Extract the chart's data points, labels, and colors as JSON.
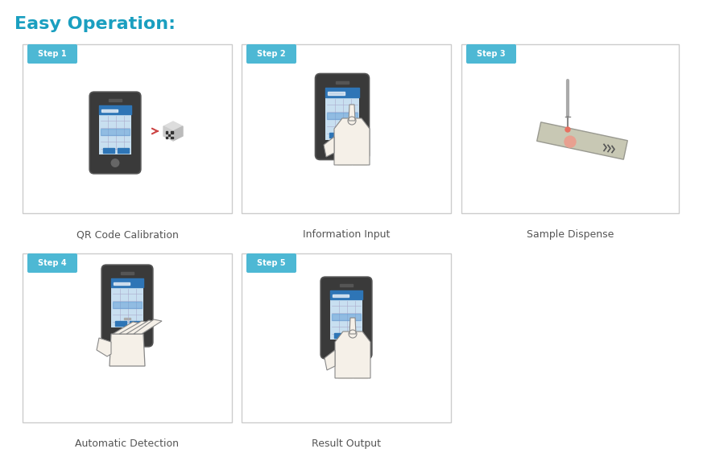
{
  "title": "Easy Operation:",
  "title_color": "#1a9fc0",
  "title_fontsize": 16,
  "title_bold": true,
  "background_color": "#ffffff",
  "steps": [
    {
      "label": "Step 1",
      "caption": "QR Code Calibration",
      "col": 0,
      "row": 0
    },
    {
      "label": "Step 2",
      "caption": "Information Input",
      "col": 1,
      "row": 0
    },
    {
      "label": "Step 3",
      "caption": "Sample Dispense",
      "col": 2,
      "row": 0
    },
    {
      "label": "Step 4",
      "caption": "Automatic Detection",
      "col": 0,
      "row": 1
    },
    {
      "label": "Step 5",
      "caption": "Result Output",
      "col": 1,
      "row": 1
    }
  ],
  "step_label_bg": "#4db8d4",
  "step_label_color": "#ffffff",
  "box_edge_color": "#cccccc",
  "box_face_color": "#ffffff",
  "caption_color": "#555555",
  "caption_fontsize": 9,
  "device_body_color": "#444444",
  "device_screen_color": "#5b9bd5",
  "device_screen_light": "#bdd7ee",
  "strip_color": "#b0b0a0",
  "strip_dot_color": "#e87060"
}
